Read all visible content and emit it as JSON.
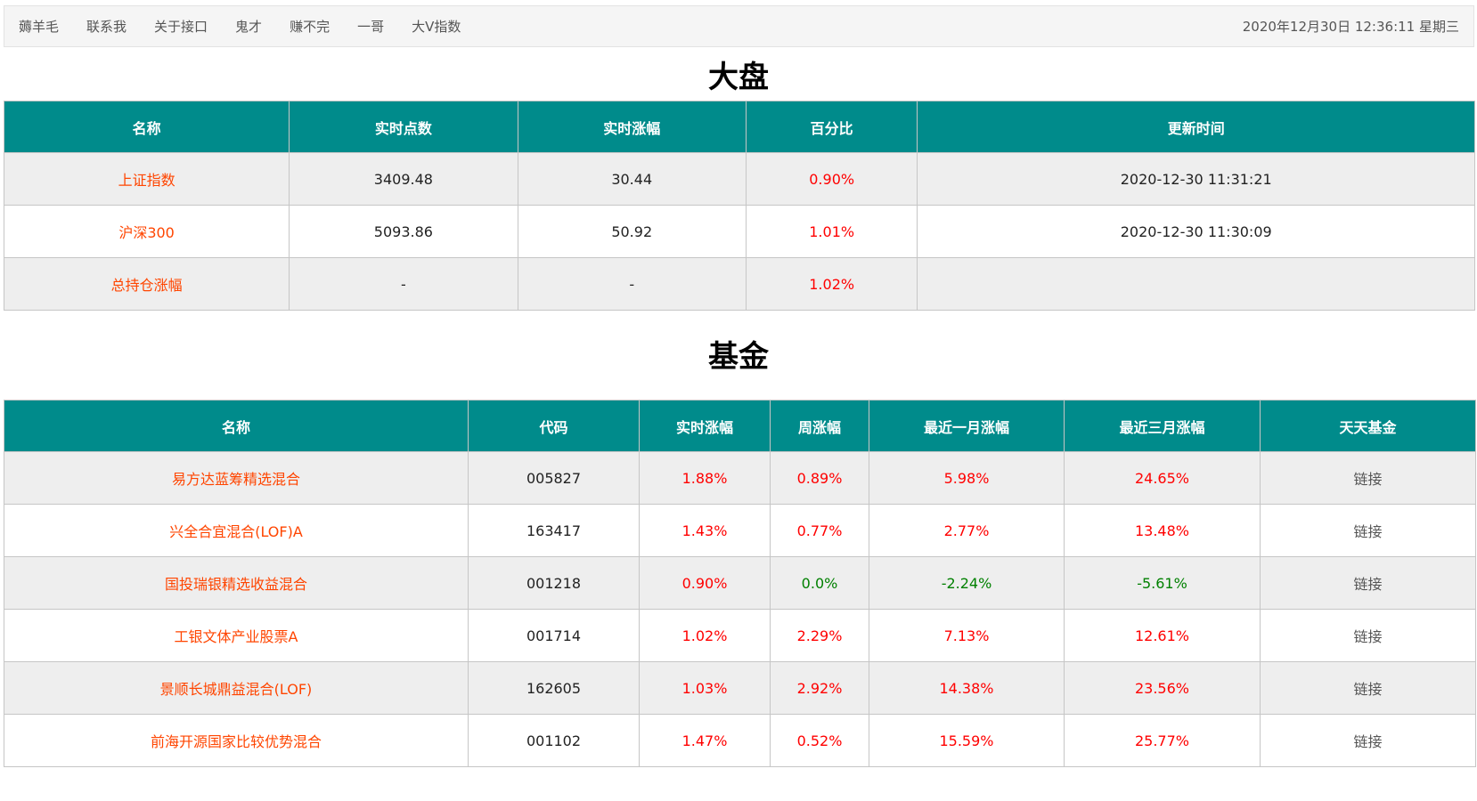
{
  "nav": {
    "links": [
      "薅羊毛",
      "联系我",
      "关于接口",
      "鬼才",
      "赚不完",
      "一哥",
      "大V指数"
    ],
    "clock": "2020年12月30日 12:36:11 星期三"
  },
  "market": {
    "title": "大盘",
    "headers": [
      "名称",
      "实时点数",
      "实时涨幅",
      "百分比",
      "更新时间"
    ],
    "rows": [
      {
        "name": "上证指数",
        "points": "3409.48",
        "change": "30.44",
        "percent": "0.90%",
        "updated": "2020-12-30 11:31:21"
      },
      {
        "name": "沪深300",
        "points": "5093.86",
        "change": "50.92",
        "percent": "1.01%",
        "updated": "2020-12-30 11:30:09"
      },
      {
        "name": "总持仓涨幅",
        "points": "-",
        "change": "-",
        "percent": "1.02%",
        "updated": ""
      }
    ]
  },
  "funds": {
    "title": "基金",
    "headers": [
      "名称",
      "代码",
      "实时涨幅",
      "周涨幅",
      "最近一月涨幅",
      "最近三月涨幅",
      "天天基金"
    ],
    "rows": [
      {
        "name": "易方达蓝筹精选混合",
        "code": "005827",
        "realtime": "1.88%",
        "week": "0.89%",
        "month1": "5.98%",
        "month3": "24.65%",
        "link": "链接"
      },
      {
        "name": "兴全合宜混合(LOF)A",
        "code": "163417",
        "realtime": "1.43%",
        "week": "0.77%",
        "month1": "2.77%",
        "month3": "13.48%",
        "link": "链接"
      },
      {
        "name": "国投瑞银精选收益混合",
        "code": "001218",
        "realtime": "0.90%",
        "week": "0.0%",
        "month1": "-2.24%",
        "month3": "-5.61%",
        "link": "链接"
      },
      {
        "name": "工银文体产业股票A",
        "code": "001714",
        "realtime": "1.02%",
        "week": "2.29%",
        "month1": "7.13%",
        "month3": "12.61%",
        "link": "链接"
      },
      {
        "name": "景顺长城鼎益混合(LOF)",
        "code": "162605",
        "realtime": "1.03%",
        "week": "2.92%",
        "month1": "14.38%",
        "month3": "23.56%",
        "link": "链接"
      },
      {
        "name": "前海开源国家比较优势混合",
        "code": "001102",
        "realtime": "1.47%",
        "week": "0.52%",
        "month1": "15.59%",
        "month3": "25.77%",
        "link": "链接"
      }
    ]
  },
  "colors": {
    "header_bg": "#008b8b",
    "name_text": "#ff4500",
    "positive": "#ff0000",
    "non_positive": "#008000"
  }
}
